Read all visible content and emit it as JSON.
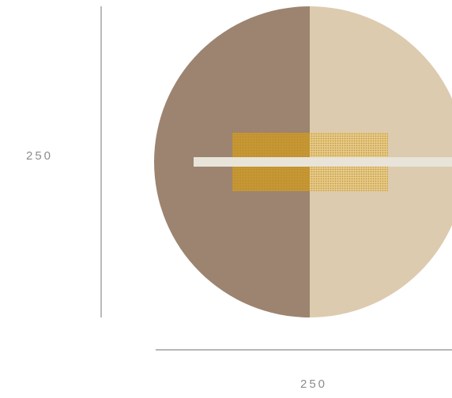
{
  "dimensions": {
    "height_label": "250",
    "width_label": "250"
  },
  "colors": {
    "left_half": "#9c8470",
    "right_half": "#dccbae",
    "band": "#e8e4d9",
    "swatch_solid": "#c89a36",
    "swatch_dotted": "#d7b568",
    "dimension_line": "#8c8c8c",
    "background": "#ffffff"
  }
}
